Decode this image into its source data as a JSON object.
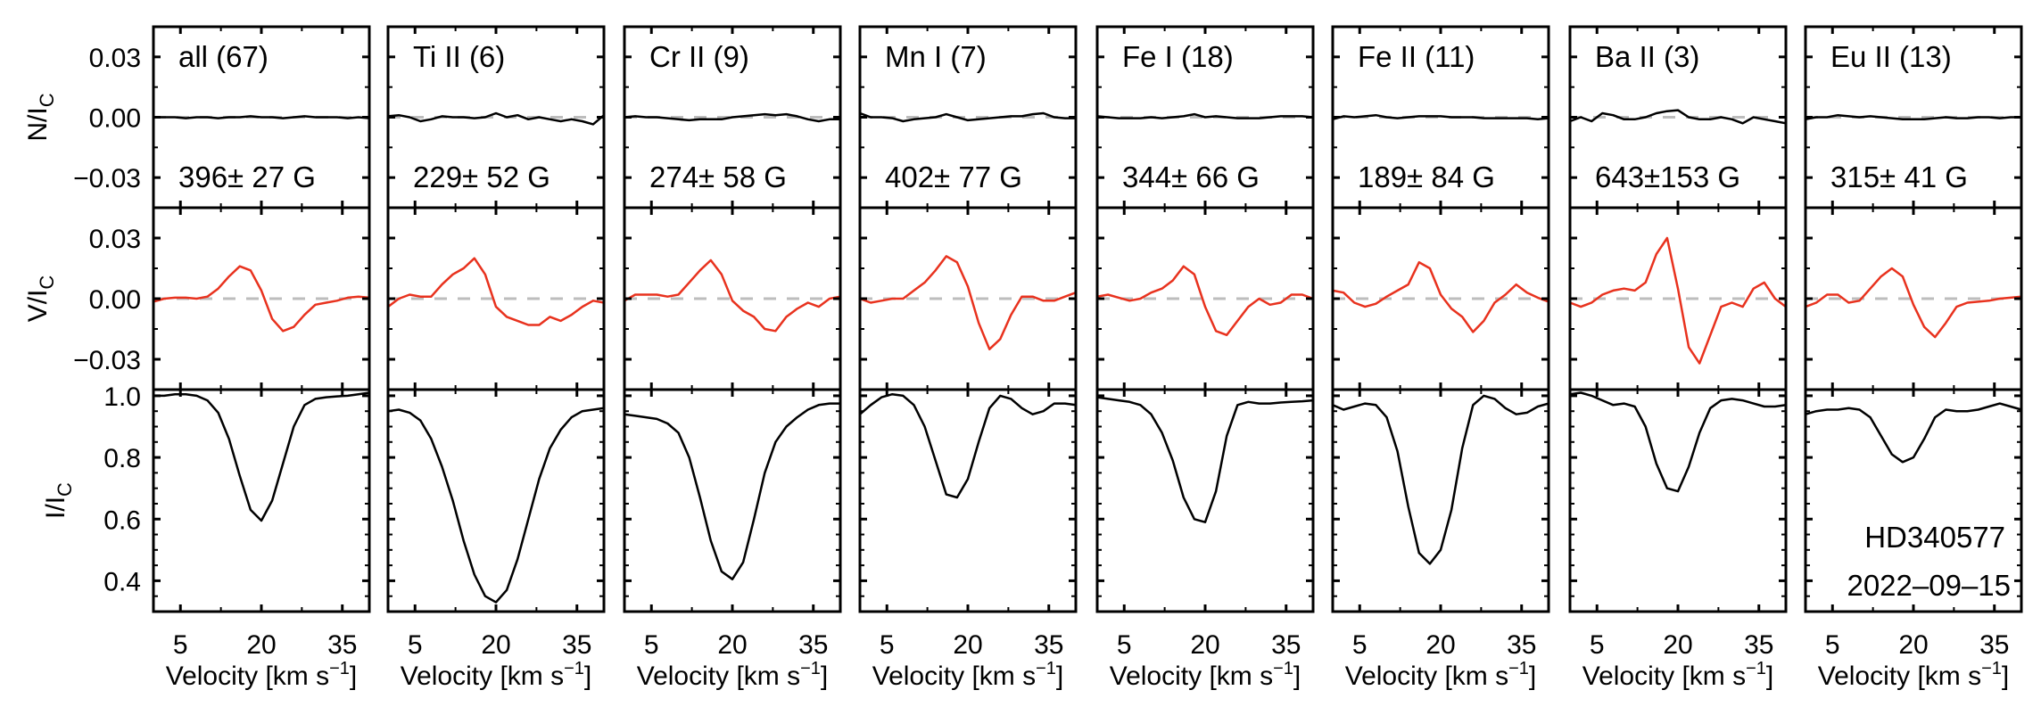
{
  "chart_data": {
    "type": "line",
    "title": "",
    "star": "HD340577",
    "date": "2022–09–15",
    "xlabel": "Velocity [km s⁻¹]",
    "xlabel_main": "Velocity [km s",
    "xlabel_sup": "−1",
    "xlabel_end": "]",
    "xlim": [
      0,
      40
    ],
    "xticks": [
      5,
      20,
      35
    ],
    "xtick_labels": [
      "5",
      "20",
      "35"
    ],
    "rows": [
      {
        "key": "N",
        "ylabel_main": "N/I",
        "ylabel_sub": "C",
        "ylim": [
          -0.045,
          0.045
        ],
        "yticks": [
          0.03,
          0.0,
          -0.03
        ],
        "ytick_labels": [
          "0.03",
          "0.00",
          "−0.03"
        ],
        "color": "#000000"
      },
      {
        "key": "V",
        "ylabel_main": "V/I",
        "ylabel_sub": "C",
        "ylim": [
          -0.045,
          0.045
        ],
        "yticks": [
          0.03,
          0.0,
          -0.03
        ],
        "ytick_labels": [
          "0.03",
          "0.00",
          "−0.03"
        ],
        "color": "#e8321e"
      },
      {
        "key": "I",
        "ylabel_main": "I/I",
        "ylabel_sub": "C",
        "ylim": [
          0.3,
          1.02
        ],
        "yticks": [
          1.0,
          0.8,
          0.6,
          0.4
        ],
        "ytick_labels": [
          "1.0",
          "0.8",
          "0.6",
          "0.4"
        ],
        "color": "#000000"
      }
    ],
    "velocity": [
      0,
      2,
      4,
      6,
      8,
      10,
      12,
      14,
      16,
      18,
      20,
      22,
      24,
      26,
      28,
      30,
      32,
      34,
      36,
      38,
      40
    ],
    "panels": [
      {
        "label": "all (67)",
        "field": "396± 27 G",
        "N": [
          0.0,
          0.0,
          0.0,
          -0.0005,
          0.0,
          0.0,
          -0.0005,
          0.0,
          0.0,
          0.0005,
          0.0,
          0.0,
          -0.0005,
          0.0,
          0.0005,
          0.0,
          0.0,
          0.0,
          -0.0005,
          0.0,
          -0.0005
        ],
        "V": [
          -0.0015,
          0.0,
          0.0005,
          0.0005,
          0.0,
          0.001,
          0.005,
          0.011,
          0.016,
          0.014,
          0.004,
          -0.01,
          -0.016,
          -0.014,
          -0.008,
          -0.003,
          -0.002,
          -0.001,
          0.0005,
          0.001,
          0.0005
        ],
        "I": [
          1.0,
          1.0,
          1.005,
          1.005,
          1.0,
          0.985,
          0.945,
          0.86,
          0.74,
          0.63,
          0.595,
          0.66,
          0.78,
          0.9,
          0.97,
          0.99,
          0.995,
          0.998,
          1.0,
          1.005,
          1.01
        ]
      },
      {
        "label": "Ti II (6)",
        "field": "229± 52 G",
        "N": [
          0.0005,
          0.001,
          0.0,
          -0.002,
          -0.001,
          0.0005,
          0.0,
          0.0,
          -0.0005,
          0.0,
          0.002,
          0.0,
          0.001,
          -0.001,
          0.0,
          -0.001,
          -0.002,
          -0.001,
          -0.002,
          -0.0035,
          0.001
        ],
        "V": [
          -0.004,
          0.0,
          0.002,
          0.001,
          0.001,
          0.007,
          0.012,
          0.015,
          0.02,
          0.012,
          -0.004,
          -0.009,
          -0.011,
          -0.013,
          -0.013,
          -0.009,
          -0.011,
          -0.008,
          -0.004,
          -0.001,
          -0.002
        ],
        "I": [
          0.95,
          0.955,
          0.945,
          0.92,
          0.86,
          0.77,
          0.66,
          0.53,
          0.42,
          0.35,
          0.33,
          0.37,
          0.47,
          0.6,
          0.73,
          0.83,
          0.89,
          0.93,
          0.95,
          0.955,
          0.96
        ]
      },
      {
        "label": "Cr II (9)",
        "field": "274± 58 G",
        "N": [
          0.0,
          0.0005,
          0.0,
          0.0,
          -0.0005,
          -0.001,
          -0.0015,
          -0.001,
          -0.001,
          -0.001,
          0.0,
          0.0005,
          0.001,
          0.0015,
          0.001,
          0.0015,
          0.0005,
          -0.001,
          -0.002,
          -0.001,
          -0.001
        ],
        "V": [
          -0.001,
          0.002,
          0.002,
          0.002,
          0.001,
          0.002,
          0.008,
          0.014,
          0.019,
          0.012,
          -0.001,
          -0.006,
          -0.009,
          -0.015,
          -0.016,
          -0.009,
          -0.005,
          -0.002,
          -0.004,
          0.0,
          0.001
        ],
        "I": [
          0.94,
          0.935,
          0.93,
          0.925,
          0.91,
          0.88,
          0.8,
          0.67,
          0.53,
          0.43,
          0.405,
          0.46,
          0.6,
          0.75,
          0.85,
          0.9,
          0.93,
          0.955,
          0.97,
          0.975,
          0.975
        ]
      },
      {
        "label": "Mn I (7)",
        "field": "402± 77 G",
        "N": [
          0.002,
          0.0,
          0.0,
          -0.0005,
          -0.002,
          -0.001,
          -0.0005,
          0.0,
          0.0015,
          0.0,
          -0.0015,
          -0.001,
          -0.0005,
          0.0,
          0.0005,
          0.0005,
          0.0015,
          0.002,
          0.0,
          -0.0005,
          -0.0005
        ],
        "V": [
          0.0,
          -0.002,
          -0.001,
          0.0,
          0.0,
          0.004,
          0.008,
          0.014,
          0.021,
          0.018,
          0.006,
          -0.012,
          -0.025,
          -0.02,
          -0.008,
          0.001,
          0.001,
          -0.001,
          -0.001,
          0.001,
          0.003
        ],
        "I": [
          0.94,
          0.97,
          0.995,
          1.005,
          1.0,
          0.97,
          0.9,
          0.79,
          0.68,
          0.67,
          0.73,
          0.85,
          0.96,
          1.0,
          0.99,
          0.96,
          0.94,
          0.95,
          0.975,
          0.975,
          0.97
        ]
      },
      {
        "label": "Fe I (18)",
        "field": "344± 66 G",
        "N": [
          0.0005,
          0.0,
          -0.0005,
          -0.0005,
          -0.0005,
          0.0,
          -0.0005,
          0.0,
          0.0005,
          0.0015,
          0.0,
          0.0005,
          0.0,
          -0.0005,
          -0.0005,
          -0.0005,
          0.0,
          0.0005,
          0.0005,
          0.0005,
          0.0
        ],
        "V": [
          0.001,
          0.002,
          0.0005,
          -0.001,
          0.0,
          0.003,
          0.005,
          0.009,
          0.016,
          0.012,
          -0.004,
          -0.016,
          -0.018,
          -0.011,
          -0.004,
          0.0,
          -0.003,
          -0.002,
          0.002,
          0.002,
          0.0
        ],
        "I": [
          0.995,
          0.99,
          0.985,
          0.98,
          0.97,
          0.94,
          0.88,
          0.79,
          0.67,
          0.6,
          0.59,
          0.69,
          0.87,
          0.97,
          0.98,
          0.975,
          0.975,
          0.978,
          0.98,
          0.982,
          0.985
        ]
      },
      {
        "label": "Fe II (11)",
        "field": "189± 84 G",
        "N": [
          -0.001,
          0.0005,
          0.0,
          0.0005,
          0.001,
          0.0,
          -0.0005,
          0.0,
          0.0005,
          0.0005,
          0.0005,
          0.0,
          0.0,
          0.0,
          -0.0005,
          -0.0005,
          -0.0005,
          -0.0005,
          -0.0005,
          -0.001,
          -0.0005
        ],
        "V": [
          0.004,
          0.003,
          -0.002,
          -0.004,
          -0.0025,
          0.001,
          0.004,
          0.007,
          0.018,
          0.015,
          0.002,
          -0.005,
          -0.009,
          -0.0165,
          -0.011,
          -0.002,
          0.002,
          0.007,
          0.003,
          0.0005,
          -0.0015
        ],
        "I": [
          0.97,
          0.955,
          0.965,
          0.975,
          0.97,
          0.93,
          0.82,
          0.64,
          0.49,
          0.455,
          0.5,
          0.63,
          0.83,
          0.97,
          1.0,
          0.99,
          0.96,
          0.94,
          0.945,
          0.965,
          0.975
        ]
      },
      {
        "label": "Ba II (3)",
        "field": "643±153 G",
        "N": [
          -0.002,
          0.0,
          -0.002,
          0.002,
          0.001,
          -0.001,
          -0.001,
          0.0,
          0.002,
          0.003,
          0.0035,
          0.0,
          -0.001,
          -0.001,
          0.0,
          -0.001,
          -0.003,
          0.0,
          -0.001,
          -0.002,
          -0.003
        ],
        "V": [
          -0.002,
          -0.004,
          -0.002,
          0.002,
          0.004,
          0.005,
          0.004,
          0.008,
          0.022,
          0.03,
          0.005,
          -0.024,
          -0.032,
          -0.018,
          -0.004,
          -0.002,
          -0.004,
          0.005,
          0.008,
          0.0,
          -0.004
        ],
        "I": [
          1.005,
          1.01,
          1.0,
          0.985,
          0.97,
          0.975,
          0.965,
          0.9,
          0.78,
          0.7,
          0.69,
          0.77,
          0.88,
          0.96,
          0.985,
          0.99,
          0.985,
          0.975,
          0.965,
          0.965,
          0.97
        ]
      },
      {
        "label": "Eu II (13)",
        "field": "315± 41 G",
        "N": [
          -0.001,
          0.0,
          0.0,
          0.001,
          0.0005,
          0.0,
          0.0005,
          0.0,
          -0.0005,
          -0.001,
          -0.001,
          -0.001,
          -0.0005,
          0.0,
          -0.0005,
          -0.0005,
          0.0,
          0.0,
          -0.0005,
          0.0,
          0.0
        ],
        "V": [
          -0.004,
          -0.002,
          0.002,
          0.002,
          -0.002,
          -0.001,
          0.005,
          0.011,
          0.015,
          0.011,
          -0.003,
          -0.014,
          -0.019,
          -0.012,
          -0.004,
          -0.002,
          -0.0015,
          -0.001,
          0.0,
          0.0005,
          0.001
        ],
        "I": [
          0.94,
          0.95,
          0.955,
          0.955,
          0.96,
          0.955,
          0.93,
          0.87,
          0.81,
          0.785,
          0.8,
          0.86,
          0.93,
          0.955,
          0.95,
          0.95,
          0.955,
          0.965,
          0.975,
          0.965,
          0.955
        ]
      }
    ]
  }
}
